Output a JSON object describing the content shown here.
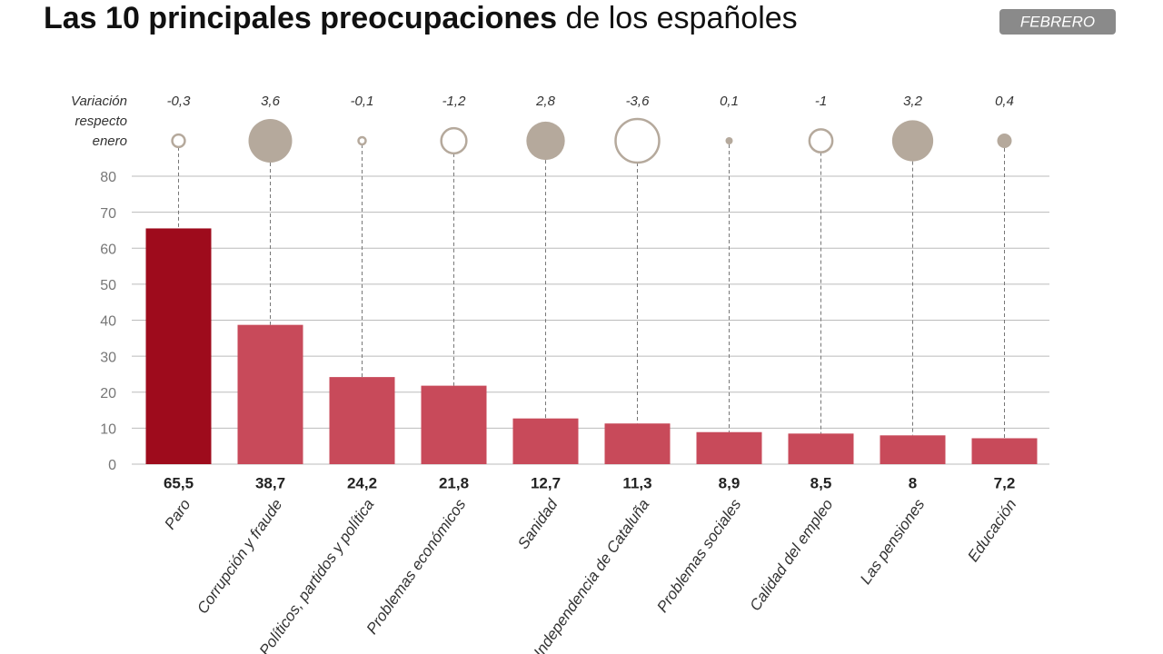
{
  "chart_data": {
    "type": "bar",
    "title_parts": [
      "Las 10 principales preocupaciones",
      "de los españoles"
    ],
    "badge": "FEBRERO",
    "variation_label": [
      "Variación",
      "respecto",
      "enero"
    ],
    "categories": [
      "Paro",
      "Corrupción y fraude",
      "Políticos, partidos y política",
      "Problemas económicos",
      "Sanidad",
      "Independencia de Cataluña",
      "Problemas sociales",
      "Calidad del empleo",
      "Las pensiones",
      "Educación"
    ],
    "values": [
      65.5,
      38.7,
      24.2,
      21.8,
      12.7,
      11.3,
      8.9,
      8.5,
      8,
      7.2
    ],
    "value_labels": [
      "65,5",
      "38,7",
      "24,2",
      "21,8",
      "12,7",
      "11,3",
      "8,9",
      "8,5",
      "8",
      "7,2"
    ],
    "colors": [
      "#9e0b1c",
      "#c84a5a",
      "#c84a5a",
      "#c84a5a",
      "#c84a5a",
      "#c84a5a",
      "#c84a5a",
      "#c84a5a",
      "#c84a5a",
      "#c84a5a"
    ],
    "variation": [
      -0.3,
      3.6,
      -0.1,
      -1.2,
      2.8,
      -3.6,
      0.1,
      -1,
      3.2,
      0.4
    ],
    "variation_labels": [
      "-0,3",
      "3,6",
      "-0,1",
      "-1,2",
      "2,8",
      "-3,6",
      "0,1",
      "-1",
      "3,2",
      "0,4"
    ],
    "variation_color": "#b5a99c",
    "ylim": [
      0,
      80
    ],
    "yticks": [
      0,
      10,
      20,
      30,
      40,
      50,
      60,
      70,
      80
    ],
    "grid": true
  }
}
